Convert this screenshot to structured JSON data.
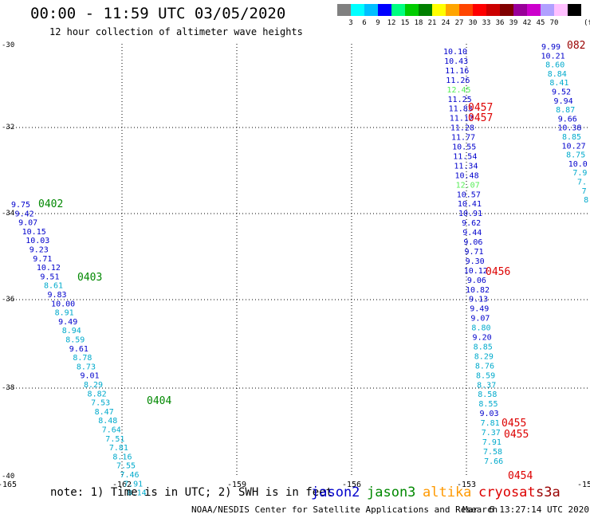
{
  "header": {
    "title": "00:00 - 11:59 UTC 03/05/2020",
    "subtitle": "12 hour collection of altimeter wave heights"
  },
  "colorbar": {
    "unit_label": "(ft)",
    "colors": [
      "#808080",
      "#00ffff",
      "#00bfff",
      "#0000ff",
      "#00ff80",
      "#00cc00",
      "#008000",
      "#ffff00",
      "#ffa500",
      "#ff4500",
      "#ff0000",
      "#cc0000",
      "#800000",
      "#990099",
      "#cc00cc",
      "#b0a0ff",
      "#ffc0ff",
      "#000000"
    ],
    "labels": [
      "3",
      "6",
      "9",
      "12",
      "15",
      "18",
      "21",
      "24",
      "27",
      "30",
      "33",
      "36",
      "39",
      "42",
      "45",
      "70"
    ]
  },
  "axes": {
    "x_ticks": [
      "-165",
      "-162",
      "-159",
      "-156",
      "-153",
      "-15"
    ],
    "y_ticks": [
      "-30",
      "-32",
      "-34",
      "-36",
      "-38",
      "-40"
    ]
  },
  "track_colors": {
    "jason2": "#0000cc",
    "jason3": "#008800",
    "altika": "#ff9900",
    "cryosat": "#dd0000",
    "s3a": "#990000",
    "light": "#00aacc",
    "green": "#55ee55"
  },
  "tracks": [
    {
      "name": "left-track",
      "points": [
        {
          "v": "9.75",
          "c": "#0000cc"
        },
        {
          "v": "9.42",
          "c": "#0000cc"
        },
        {
          "v": "9.07",
          "c": "#0000cc"
        },
        {
          "v": "10.15",
          "c": "#0000cc"
        },
        {
          "v": "10.03",
          "c": "#0000cc"
        },
        {
          "v": "9.23",
          "c": "#0000cc"
        },
        {
          "v": "9.71",
          "c": "#0000cc"
        },
        {
          "v": "10.12",
          "c": "#0000cc"
        },
        {
          "v": "9.51",
          "c": "#0000cc"
        },
        {
          "v": "8.61",
          "c": "#00aacc"
        },
        {
          "v": "9.83",
          "c": "#0000cc"
        },
        {
          "v": "10.00",
          "c": "#0000cc"
        },
        {
          "v": "8.91",
          "c": "#00aacc"
        },
        {
          "v": "9.49",
          "c": "#0000cc"
        },
        {
          "v": "8.94",
          "c": "#00aacc"
        },
        {
          "v": "8.59",
          "c": "#00aacc"
        },
        {
          "v": "9.61",
          "c": "#0000cc"
        },
        {
          "v": "8.78",
          "c": "#00aacc"
        },
        {
          "v": "8.73",
          "c": "#00aacc"
        },
        {
          "v": "9.01",
          "c": "#0000cc"
        },
        {
          "v": "8.29",
          "c": "#00aacc"
        },
        {
          "v": "8.82",
          "c": "#00aacc"
        },
        {
          "v": "7.53",
          "c": "#00aacc"
        },
        {
          "v": "8.47",
          "c": "#00aacc"
        },
        {
          "v": "8.48",
          "c": "#00aacc"
        },
        {
          "v": "7.64",
          "c": "#00aacc"
        },
        {
          "v": "7.51",
          "c": "#00aacc"
        },
        {
          "v": "7.81",
          "c": "#00aacc"
        },
        {
          "v": "8.16",
          "c": "#00aacc"
        },
        {
          "v": "7.55",
          "c": "#00aacc"
        },
        {
          "v": "7.46",
          "c": "#00aacc"
        },
        {
          "v": "7.91",
          "c": "#00aacc"
        },
        {
          "v": "8.14",
          "c": "#00aacc"
        }
      ]
    },
    {
      "name": "middle-track",
      "points": [
        {
          "v": "10.10",
          "c": "#0000cc"
        },
        {
          "v": "10.43",
          "c": "#0000cc"
        },
        {
          "v": "11.16",
          "c": "#0000cc"
        },
        {
          "v": "11.26",
          "c": "#0000cc"
        },
        {
          "v": "12.45",
          "c": "#55ee55"
        },
        {
          "v": "11.25",
          "c": "#0000cc"
        },
        {
          "v": "11.83",
          "c": "#0000cc"
        },
        {
          "v": "11.12",
          "c": "#0000cc"
        },
        {
          "v": "11.28",
          "c": "#0000cc"
        },
        {
          "v": "11.77",
          "c": "#0000cc"
        },
        {
          "v": "10.55",
          "c": "#0000cc"
        },
        {
          "v": "11.54",
          "c": "#0000cc"
        },
        {
          "v": "11.34",
          "c": "#0000cc"
        },
        {
          "v": "10.48",
          "c": "#0000cc"
        },
        {
          "v": "12.07",
          "c": "#55ee55"
        },
        {
          "v": "10.57",
          "c": "#0000cc"
        },
        {
          "v": "10.41",
          "c": "#0000cc"
        },
        {
          "v": "10.91",
          "c": "#0000cc"
        },
        {
          "v": "9.62",
          "c": "#0000cc"
        },
        {
          "v": "9.44",
          "c": "#0000cc"
        },
        {
          "v": "9.06",
          "c": "#0000cc"
        },
        {
          "v": "9.71",
          "c": "#0000cc"
        },
        {
          "v": "9.30",
          "c": "#0000cc"
        },
        {
          "v": "10.12",
          "c": "#0000cc"
        },
        {
          "v": "9.06",
          "c": "#0000cc"
        },
        {
          "v": "10.82",
          "c": "#0000cc"
        },
        {
          "v": "9.13",
          "c": "#0000cc"
        },
        {
          "v": "9.49",
          "c": "#0000cc"
        },
        {
          "v": "9.07",
          "c": "#0000cc"
        },
        {
          "v": "8.80",
          "c": "#00aacc"
        },
        {
          "v": "9.20",
          "c": "#0000cc"
        },
        {
          "v": "8.85",
          "c": "#00aacc"
        },
        {
          "v": "8.29",
          "c": "#00aacc"
        },
        {
          "v": "8.76",
          "c": "#00aacc"
        },
        {
          "v": "8.59",
          "c": "#00aacc"
        },
        {
          "v": "8.37",
          "c": "#00aacc"
        },
        {
          "v": "8.58",
          "c": "#00aacc"
        },
        {
          "v": "8.55",
          "c": "#00aacc"
        },
        {
          "v": "9.03",
          "c": "#0000cc"
        },
        {
          "v": "7.81",
          "c": "#00aacc"
        },
        {
          "v": "7.37",
          "c": "#00aacc"
        },
        {
          "v": "7.91",
          "c": "#00aacc"
        },
        {
          "v": "7.58",
          "c": "#00aacc"
        },
        {
          "v": "7.66",
          "c": "#00aacc"
        }
      ]
    },
    {
      "name": "right-track",
      "points": [
        {
          "v": "9.99",
          "c": "#0000cc"
        },
        {
          "v": "10.21",
          "c": "#0000cc"
        },
        {
          "v": "8.60",
          "c": "#00aacc"
        },
        {
          "v": "8.84",
          "c": "#00aacc"
        },
        {
          "v": "8.41",
          "c": "#00aacc"
        },
        {
          "v": "9.52",
          "c": "#0000cc"
        },
        {
          "v": "9.94",
          "c": "#0000cc"
        },
        {
          "v": "8.87",
          "c": "#00aacc"
        },
        {
          "v": "9.66",
          "c": "#0000cc"
        },
        {
          "v": "10.38",
          "c": "#0000cc"
        },
        {
          "v": "8.85",
          "c": "#00aacc"
        },
        {
          "v": "10.27",
          "c": "#0000cc"
        },
        {
          "v": "8.75",
          "c": "#00aacc"
        },
        {
          "v": "10.0",
          "c": "#0000cc"
        },
        {
          "v": "7.9",
          "c": "#00aacc"
        },
        {
          "v": "7.",
          "c": "#00aacc"
        },
        {
          "v": "7",
          "c": "#00aacc"
        },
        {
          "v": "8",
          "c": "#00aacc"
        }
      ]
    }
  ],
  "time_labels": [
    {
      "t": "0402",
      "c": "#008800"
    },
    {
      "t": "0403",
      "c": "#008800"
    },
    {
      "t": "0404",
      "c": "#008800"
    },
    {
      "t": "0457",
      "c": "#dd0000"
    },
    {
      "t": "0457",
      "c": "#dd0000"
    },
    {
      "t": "0456",
      "c": "#dd0000"
    },
    {
      "t": "0455",
      "c": "#dd0000"
    },
    {
      "t": "0455",
      "c": "#dd0000"
    },
    {
      "t": "0454",
      "c": "#dd0000"
    },
    {
      "t": "082",
      "c": "#990000"
    }
  ],
  "footer": {
    "note": "note: 1) Time is in UTC; 2) SWH is in feet",
    "legend": {
      "jason2": "jason2",
      "jason3": "jason3",
      "altika": "altika",
      "cryosat": "cryosat",
      "s3a": "s3a"
    },
    "credit": "NOAA/NESDIS Center for Satellite Applications and Research",
    "timestamp": "Mar  6 13:27:14 UTC 2020"
  }
}
